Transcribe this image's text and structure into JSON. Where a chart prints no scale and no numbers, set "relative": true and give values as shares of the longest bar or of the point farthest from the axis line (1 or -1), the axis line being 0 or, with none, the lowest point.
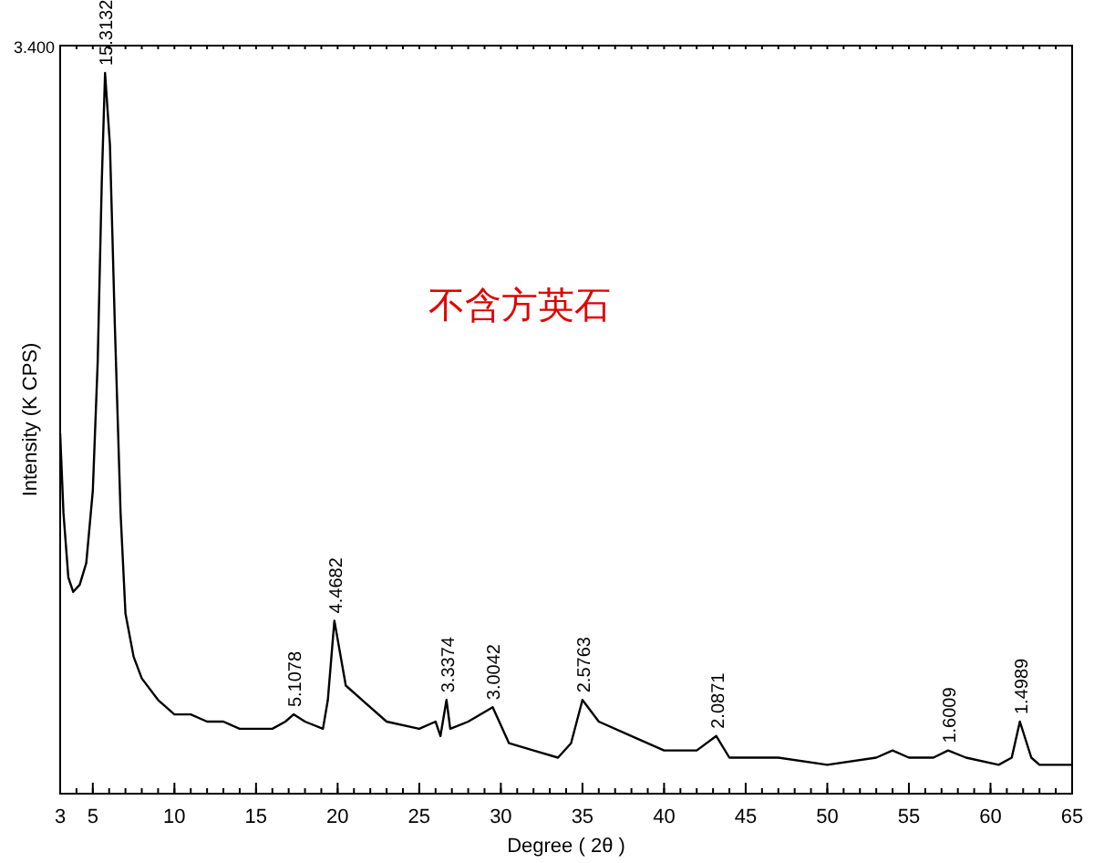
{
  "chart_data": {
    "type": "line",
    "relative": true,
    "xlabel": "Degree ( 2θ )",
    "ylabel": "Intensity   (K CPS)",
    "xlim": [
      3,
      65
    ],
    "xticks": [
      3,
      5,
      10,
      15,
      20,
      25,
      30,
      35,
      40,
      45,
      50,
      55,
      60,
      65
    ],
    "marker": "none",
    "line_style": "solid",
    "grid": false,
    "series": [
      {
        "color": "#000000",
        "x": [
          3.0,
          3.2,
          3.5,
          3.8,
          4.2,
          4.6,
          5.0,
          5.3,
          5.55,
          5.75,
          6.05,
          6.35,
          6.7,
          7.0,
          7.5,
          8,
          9,
          10,
          11,
          12,
          13,
          14,
          15,
          16,
          16.8,
          17.3,
          18,
          19.1,
          19.4,
          19.8,
          20.5,
          21.5,
          23,
          25,
          26,
          26.3,
          26.67,
          26.9,
          28,
          29.5,
          30.5,
          32,
          33.5,
          34.3,
          35.0,
          36,
          38,
          40,
          42,
          43.2,
          44,
          47,
          50,
          53,
          54,
          55,
          56.5,
          57.4,
          58.5,
          60.5,
          61.3,
          61.8,
          62.5,
          63,
          65
        ],
        "values": [
          0.5,
          0.39,
          0.3,
          0.28,
          0.29,
          0.32,
          0.42,
          0.6,
          0.85,
          1.0,
          0.9,
          0.65,
          0.39,
          0.25,
          0.19,
          0.16,
          0.13,
          0.11,
          0.11,
          0.1,
          0.1,
          0.09,
          0.09,
          0.09,
          0.1,
          0.11,
          0.1,
          0.09,
          0.13,
          0.24,
          0.15,
          0.13,
          0.1,
          0.09,
          0.1,
          0.08,
          0.13,
          0.09,
          0.1,
          0.12,
          0.07,
          0.06,
          0.05,
          0.07,
          0.13,
          0.1,
          0.08,
          0.06,
          0.06,
          0.08,
          0.05,
          0.05,
          0.04,
          0.05,
          0.06,
          0.05,
          0.05,
          0.06,
          0.05,
          0.04,
          0.05,
          0.1,
          0.05,
          0.04,
          0.04
        ]
      }
    ],
    "annotations": [
      {
        "text": "15.3132",
        "x": 5.75,
        "y": 1.0
      },
      {
        "text": "5.1078",
        "x": 17.3,
        "y": 0.11
      },
      {
        "text": "4.4682",
        "x": 19.8,
        "y": 0.24
      },
      {
        "text": "3.3374",
        "x": 26.67,
        "y": 0.13
      },
      {
        "text": "3.0042",
        "x": 29.5,
        "y": 0.12
      },
      {
        "text": "2.5763",
        "x": 35.0,
        "y": 0.13
      },
      {
        "text": "2.0871",
        "x": 43.2,
        "y": 0.08
      },
      {
        "text": "1.6009",
        "x": 57.4,
        "y": 0.06
      },
      {
        "text": "1.4989",
        "x": 61.8,
        "y": 0.1
      },
      "不含方英石",
      "3.400"
    ]
  }
}
